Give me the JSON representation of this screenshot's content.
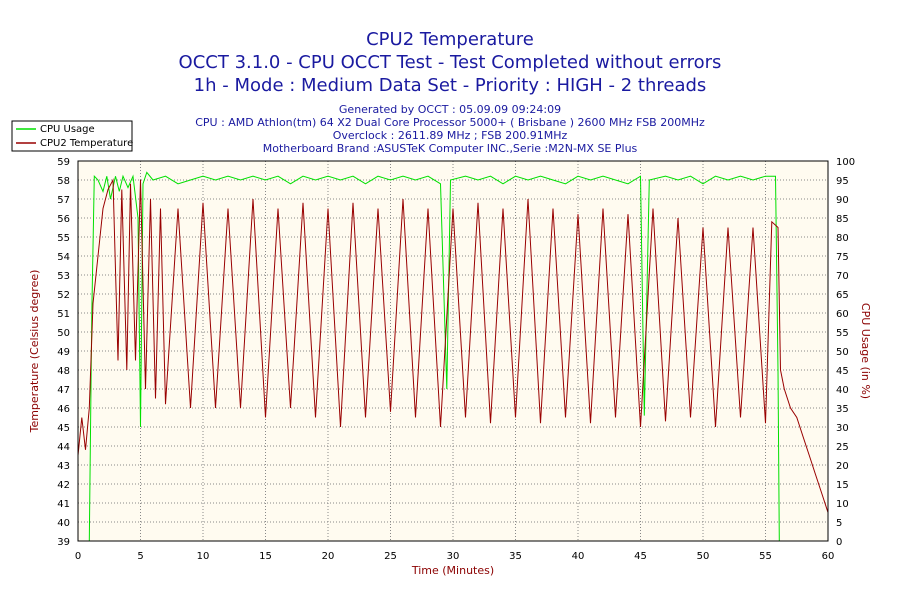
{
  "chart_data": {
    "type": "line",
    "title_lines": [
      "CPU2 Temperature",
      "OCCT 3.1.0 - CPU OCCT Test - Test Completed without errors",
      "1h - Mode : Medium Data Set - Priority : HIGH - 2 threads"
    ],
    "info_lines": [
      "Generated by OCCT : 05.09.09 09:24:09",
      "CPU : AMD Athlon(tm) 64 X2 Dual Core Processor 5000+ ( Brisbane ) 2600 MHz FSB 200MHz",
      "Overclock : 2611.89 MHz ; FSB 200.91MHz",
      "Motherboard Brand :ASUSTeK Computer INC.,Serie :M2N-MX SE Plus"
    ],
    "xlabel": "Time (Minutes)",
    "ylabel_left": "Temperature (Celsius degree)",
    "ylabel_right": "CPU Usage (in %)",
    "xlim": [
      0,
      60
    ],
    "ylim_left": [
      39,
      59
    ],
    "ylim_right": [
      0,
      100
    ],
    "x_ticks": [
      0,
      5,
      10,
      15,
      20,
      25,
      30,
      35,
      40,
      45,
      50,
      55,
      60
    ],
    "y_ticks_left": [
      39,
      40,
      41,
      42,
      43,
      44,
      45,
      46,
      47,
      48,
      49,
      50,
      51,
      52,
      53,
      54,
      55,
      56,
      57,
      58,
      59
    ],
    "y_ticks_right": [
      0,
      5,
      10,
      15,
      20,
      25,
      30,
      35,
      40,
      45,
      50,
      55,
      60,
      65,
      70,
      75,
      80,
      85,
      90,
      95,
      100
    ],
    "grid": true,
    "legend_position": "top-left",
    "plot_background": "#fffbf0",
    "series": [
      {
        "name": "CPU Usage",
        "color": "#00e000",
        "axis": "right",
        "points": [
          [
            0,
            0
          ],
          [
            0.9,
            0
          ],
          [
            1.1,
            60
          ],
          [
            1.3,
            96
          ],
          [
            1.6,
            95
          ],
          [
            2.0,
            92
          ],
          [
            2.3,
            96
          ],
          [
            2.6,
            90
          ],
          [
            3.0,
            96
          ],
          [
            3.3,
            92
          ],
          [
            3.6,
            96
          ],
          [
            4.0,
            93
          ],
          [
            4.4,
            96
          ],
          [
            4.8,
            85
          ],
          [
            5.0,
            30
          ],
          [
            5.2,
            94
          ],
          [
            5.5,
            97
          ],
          [
            6,
            95
          ],
          [
            7,
            96
          ],
          [
            8,
            94
          ],
          [
            9,
            95
          ],
          [
            10,
            96
          ],
          [
            11,
            95
          ],
          [
            12,
            96
          ],
          [
            13,
            95
          ],
          [
            14,
            96
          ],
          [
            15,
            95
          ],
          [
            16,
            96
          ],
          [
            17,
            94
          ],
          [
            18,
            96
          ],
          [
            19,
            95
          ],
          [
            20,
            96
          ],
          [
            21,
            95
          ],
          [
            22,
            96
          ],
          [
            23,
            94
          ],
          [
            24,
            96
          ],
          [
            25,
            95
          ],
          [
            26,
            96
          ],
          [
            27,
            95
          ],
          [
            28,
            96
          ],
          [
            29,
            94
          ],
          [
            29.5,
            40
          ],
          [
            29.8,
            95
          ],
          [
            31,
            96
          ],
          [
            32,
            95
          ],
          [
            33,
            96
          ],
          [
            34,
            94
          ],
          [
            35,
            96
          ],
          [
            36,
            95
          ],
          [
            37,
            96
          ],
          [
            38,
            95
          ],
          [
            39,
            94
          ],
          [
            40,
            96
          ],
          [
            41,
            95
          ],
          [
            42,
            96
          ],
          [
            43,
            95
          ],
          [
            44,
            94
          ],
          [
            45,
            96
          ],
          [
            45.3,
            33
          ],
          [
            45.7,
            95
          ],
          [
            47,
            96
          ],
          [
            48,
            95
          ],
          [
            49,
            96
          ],
          [
            50,
            94
          ],
          [
            51,
            96
          ],
          [
            52,
            95
          ],
          [
            53,
            96
          ],
          [
            54,
            95
          ],
          [
            55,
            96
          ],
          [
            55.8,
            96
          ],
          [
            56.0,
            45
          ],
          [
            56.1,
            0
          ],
          [
            60,
            0
          ]
        ]
      },
      {
        "name": "CPU2 Temperature",
        "color": "#990000",
        "axis": "left",
        "points": [
          [
            0,
            43.5
          ],
          [
            0.3,
            45.5
          ],
          [
            0.6,
            43.8
          ],
          [
            0.9,
            46
          ],
          [
            1.2,
            51.5
          ],
          [
            1.6,
            54
          ],
          [
            2.0,
            56.5
          ],
          [
            2.4,
            57.5
          ],
          [
            2.8,
            58
          ],
          [
            3.2,
            48.5
          ],
          [
            3.5,
            57.5
          ],
          [
            3.9,
            48
          ],
          [
            4.2,
            57.8
          ],
          [
            4.6,
            48.5
          ],
          [
            5.0,
            58
          ],
          [
            5.4,
            47
          ],
          [
            5.8,
            57
          ],
          [
            6.2,
            46.5
          ],
          [
            6.6,
            56.5
          ],
          [
            7,
            46.2
          ],
          [
            8,
            56.5
          ],
          [
            9,
            46
          ],
          [
            10,
            56.8
          ],
          [
            11,
            46
          ],
          [
            12,
            56.5
          ],
          [
            13,
            46
          ],
          [
            14,
            57
          ],
          [
            15,
            45.5
          ],
          [
            16,
            56.5
          ],
          [
            17,
            46
          ],
          [
            18,
            56.8
          ],
          [
            19,
            45.5
          ],
          [
            20,
            56.5
          ],
          [
            21,
            45
          ],
          [
            22,
            56.8
          ],
          [
            23,
            45.5
          ],
          [
            24,
            56.5
          ],
          [
            25,
            45.8
          ],
          [
            26,
            57
          ],
          [
            27,
            45.5
          ],
          [
            28,
            56.5
          ],
          [
            29,
            45
          ],
          [
            30,
            56.5
          ],
          [
            31,
            45.5
          ],
          [
            32,
            56.8
          ],
          [
            33,
            45.2
          ],
          [
            34,
            56.5
          ],
          [
            35,
            45.5
          ],
          [
            36,
            57
          ],
          [
            37,
            45.2
          ],
          [
            38,
            56.5
          ],
          [
            39,
            45.5
          ],
          [
            40,
            56.2
          ],
          [
            41,
            45.2
          ],
          [
            42,
            56.5
          ],
          [
            43,
            45.5
          ],
          [
            44,
            56.2
          ],
          [
            45,
            45
          ],
          [
            46,
            56.5
          ],
          [
            47,
            45.3
          ],
          [
            48,
            56
          ],
          [
            49,
            45.5
          ],
          [
            50,
            55.5
          ],
          [
            51,
            45
          ],
          [
            52,
            55.5
          ],
          [
            53,
            45.5
          ],
          [
            54,
            55.5
          ],
          [
            55,
            45.2
          ],
          [
            55.5,
            55.8
          ],
          [
            56.0,
            55.5
          ],
          [
            56.2,
            48
          ],
          [
            56.5,
            47
          ],
          [
            57,
            46
          ],
          [
            57.5,
            45.5
          ],
          [
            58,
            44.5
          ],
          [
            58.5,
            43.5
          ],
          [
            59,
            42.5
          ],
          [
            59.5,
            41.5
          ],
          [
            60,
            40.5
          ]
        ]
      }
    ]
  }
}
